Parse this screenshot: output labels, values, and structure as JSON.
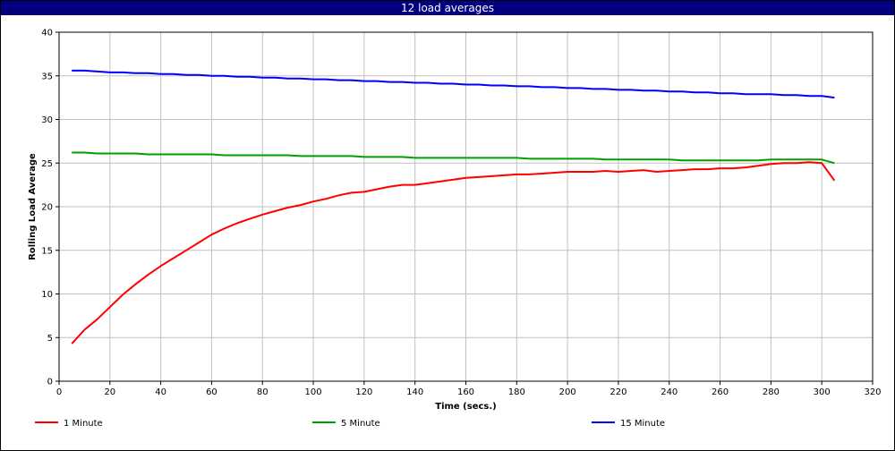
{
  "chart_data": {
    "type": "line",
    "title": "12 load averages",
    "xlabel": "Time (secs.)",
    "ylabel": "Rolling Load Average",
    "xlim": [
      0,
      320
    ],
    "ylim": [
      0,
      40
    ],
    "x_ticks": [
      0,
      20,
      40,
      60,
      80,
      100,
      120,
      140,
      160,
      180,
      200,
      220,
      240,
      260,
      280,
      300,
      320
    ],
    "y_ticks": [
      0,
      5,
      10,
      15,
      20,
      25,
      30,
      35,
      40
    ],
    "grid": true,
    "legend_position": "bottom",
    "x": [
      5,
      10,
      15,
      20,
      25,
      30,
      35,
      40,
      45,
      50,
      55,
      60,
      65,
      70,
      75,
      80,
      85,
      90,
      95,
      100,
      105,
      110,
      115,
      120,
      125,
      130,
      135,
      140,
      145,
      150,
      155,
      160,
      165,
      170,
      175,
      180,
      185,
      190,
      195,
      200,
      205,
      210,
      215,
      220,
      225,
      230,
      235,
      240,
      245,
      250,
      255,
      260,
      265,
      270,
      275,
      280,
      285,
      290,
      295,
      300,
      305
    ],
    "series": [
      {
        "name": "1 Minute",
        "color": "#ff0000",
        "values": [
          4.3,
          5.9,
          7.1,
          8.5,
          9.9,
          11.1,
          12.2,
          13.2,
          14.1,
          15.0,
          15.9,
          16.8,
          17.5,
          18.1,
          18.6,
          19.1,
          19.5,
          19.9,
          20.2,
          20.6,
          20.9,
          21.3,
          21.6,
          21.7,
          22.0,
          22.3,
          22.5,
          22.5,
          22.7,
          22.9,
          23.1,
          23.3,
          23.4,
          23.5,
          23.6,
          23.7,
          23.7,
          23.8,
          23.9,
          24.0,
          24.0,
          24.0,
          24.1,
          24.0,
          24.1,
          24.2,
          24.0,
          24.1,
          24.2,
          24.3,
          24.3,
          24.4,
          24.4,
          24.5,
          24.7,
          24.9,
          25.0,
          25.0,
          25.1,
          25.0,
          23.0
        ]
      },
      {
        "name": "5 Minute",
        "color": "#00a000",
        "values": [
          26.2,
          26.2,
          26.1,
          26.1,
          26.1,
          26.1,
          26.0,
          26.0,
          26.0,
          26.0,
          26.0,
          26.0,
          25.9,
          25.9,
          25.9,
          25.9,
          25.9,
          25.9,
          25.8,
          25.8,
          25.8,
          25.8,
          25.8,
          25.7,
          25.7,
          25.7,
          25.7,
          25.6,
          25.6,
          25.6,
          25.6,
          25.6,
          25.6,
          25.6,
          25.6,
          25.6,
          25.5,
          25.5,
          25.5,
          25.5,
          25.5,
          25.5,
          25.4,
          25.4,
          25.4,
          25.4,
          25.4,
          25.4,
          25.3,
          25.3,
          25.3,
          25.3,
          25.3,
          25.3,
          25.3,
          25.4,
          25.4,
          25.4,
          25.4,
          25.4,
          25.0
        ]
      },
      {
        "name": "15 Minute",
        "color": "#0000ff",
        "values": [
          35.6,
          35.6,
          35.5,
          35.4,
          35.4,
          35.3,
          35.3,
          35.2,
          35.2,
          35.1,
          35.1,
          35.0,
          35.0,
          34.9,
          34.9,
          34.8,
          34.8,
          34.7,
          34.7,
          34.6,
          34.6,
          34.5,
          34.5,
          34.4,
          34.4,
          34.3,
          34.3,
          34.2,
          34.2,
          34.1,
          34.1,
          34.0,
          34.0,
          33.9,
          33.9,
          33.8,
          33.8,
          33.7,
          33.7,
          33.6,
          33.6,
          33.5,
          33.5,
          33.4,
          33.4,
          33.3,
          33.3,
          33.2,
          33.2,
          33.1,
          33.1,
          33.0,
          33.0,
          32.9,
          32.9,
          32.9,
          32.8,
          32.8,
          32.7,
          32.7,
          32.5
        ]
      }
    ]
  }
}
